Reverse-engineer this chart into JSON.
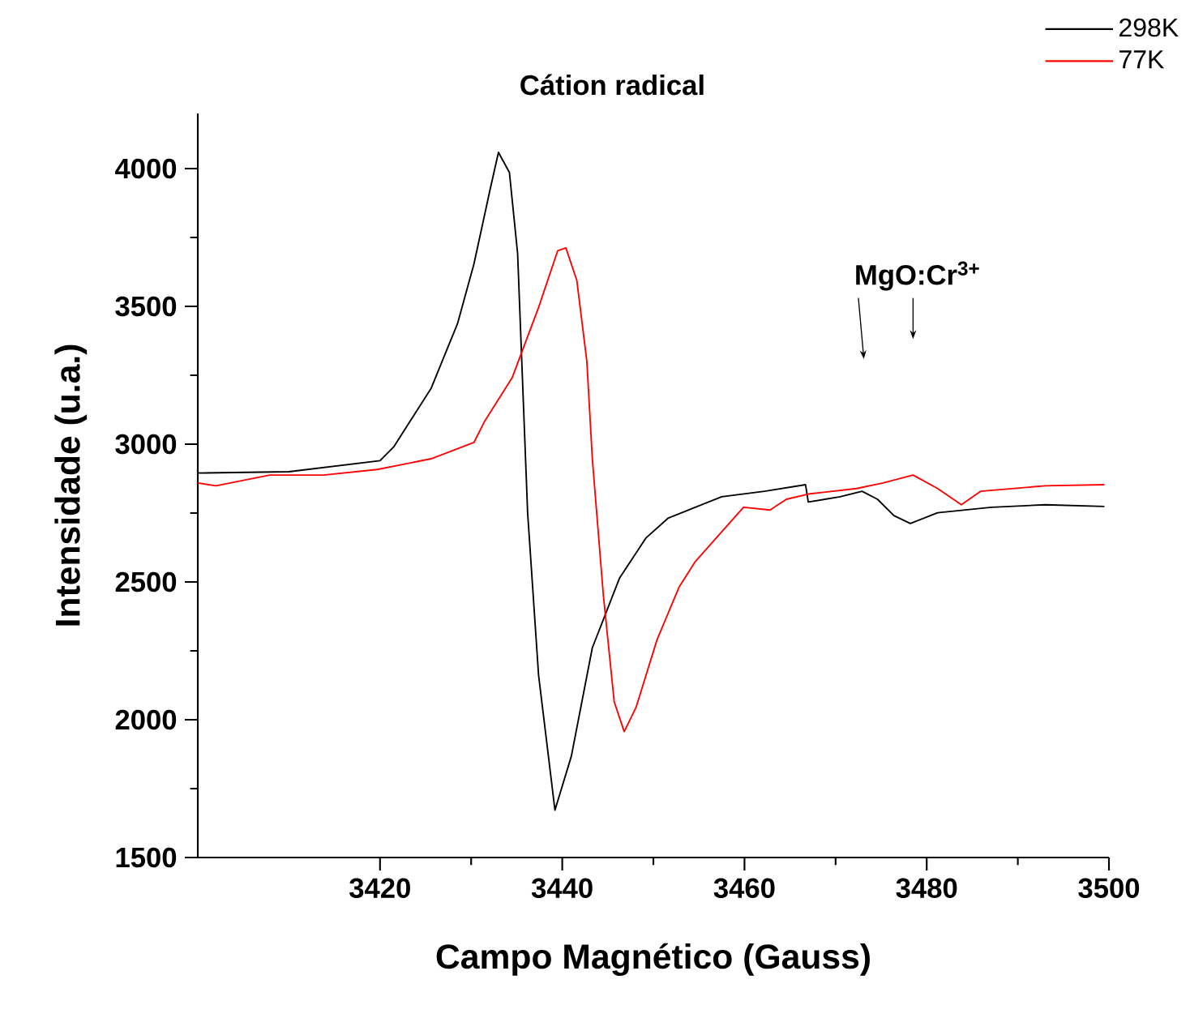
{
  "chart_data": {
    "type": "line",
    "xlabel": "Campo Magnético (Gauss)",
    "ylabel": "Intensidade (u.a.)",
    "annotations": [
      "Cátion radical",
      "MgO:Cr$^{3+}$"
    ],
    "xlim": [
      3400,
      3500
    ],
    "xticks": [
      3420,
      3440,
      3460,
      3480,
      3500
    ],
    "ylim": [
      1500,
      4200
    ],
    "yticks": [
      1500,
      2000,
      2500,
      3000,
      3500,
      4000
    ],
    "legend": "top right",
    "grid": false,
    "series": [
      {
        "name": "298K",
        "color": "#000000",
        "x": [
          3400,
          3410,
          3420,
          3421.5,
          3425.6,
          3428.5,
          3430.3,
          3432.1,
          3433.0,
          3434.2,
          3435.1,
          3436.2,
          3437.4,
          3439.2,
          3441.0,
          3443.3,
          3446.3,
          3449.2,
          3451.6,
          3454.6,
          3457.5,
          3462.2,
          3466.7,
          3467.0,
          3470.5,
          3472.9,
          3474.6,
          3476.4,
          3478.2,
          3481.2,
          3487.1,
          3493.0,
          3499.5
        ],
        "values": [
          2895,
          2900,
          2940,
          2990,
          3202,
          3437,
          3653,
          3927,
          4059,
          3986,
          3692,
          2751,
          2162,
          1672,
          1868,
          2261,
          2515,
          2660,
          2731,
          2771,
          2809,
          2829,
          2853,
          2790,
          2809,
          2829,
          2800,
          2741,
          2712,
          2751,
          2771,
          2780,
          2774
        ]
      },
      {
        "name": "77K",
        "color": "#ff0000",
        "x": [
          3400,
          3402,
          3407.9,
          3413.8,
          3419.7,
          3425.6,
          3430.3,
          3431.5,
          3434.5,
          3437.4,
          3439.5,
          3440.4,
          3441.6,
          3442.7,
          3443.3,
          3444.5,
          3445.7,
          3446.8,
          3448.1,
          3450.4,
          3452.8,
          3454.6,
          3457.5,
          3459.9,
          3462.8,
          3464.6,
          3467.0,
          3472.3,
          3475.2,
          3478.5,
          3481.2,
          3483.8,
          3485.9,
          3493.0,
          3499.5
        ],
        "values": [
          2859,
          2849,
          2888,
          2888,
          2908,
          2947,
          3006,
          3084,
          3241,
          3496,
          3702,
          3712,
          3594,
          3300,
          2947,
          2456,
          2065,
          1957,
          2045,
          2290,
          2480,
          2574,
          2682,
          2771,
          2761,
          2800,
          2819,
          2839,
          2859,
          2888,
          2839,
          2780,
          2829,
          2849,
          2853
        ]
      }
    ]
  }
}
